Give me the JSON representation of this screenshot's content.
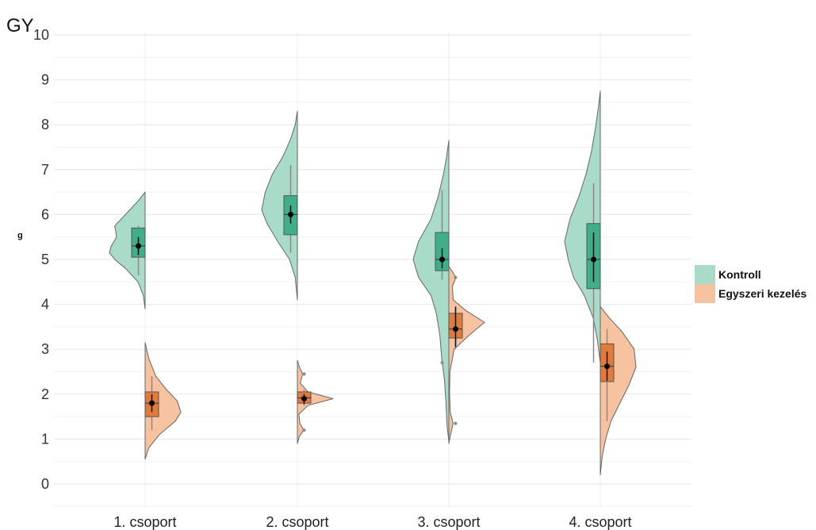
{
  "chart_data": {
    "type": "split-violin",
    "title": "GY",
    "xlabel": "",
    "ylabel": "g",
    "ylim": [
      0,
      10
    ],
    "yticks": [
      "0",
      "1",
      "2",
      "3",
      "4",
      "5",
      "6",
      "7",
      "8",
      "9",
      "10"
    ],
    "categories": [
      "1. csoport",
      "2. csoport",
      "3. csoport",
      "4. csoport"
    ],
    "grid": true,
    "legend_position": "right",
    "series": [
      {
        "name": "Kontroll",
        "side": "left",
        "fill": "#a8dcc8",
        "box_color": "#3fae8a",
        "groups": [
          {
            "min": 3.9,
            "max": 6.5,
            "q1": 5.05,
            "median": 5.3,
            "q3": 5.7,
            "mean": 5.3,
            "mean_lo": 5.1,
            "mean_hi": 5.5,
            "whisker_lo": 4.65,
            "whisker_hi": 5.75,
            "density": [
              [
                3.9,
                0
              ],
              [
                4.2,
                0.05
              ],
              [
                4.5,
                0.2
              ],
              [
                4.8,
                0.55
              ],
              [
                5.0,
                0.85
              ],
              [
                5.15,
                1.0
              ],
              [
                5.3,
                0.95
              ],
              [
                5.5,
                0.8
              ],
              [
                5.75,
                0.85
              ],
              [
                6.0,
                0.55
              ],
              [
                6.3,
                0.2
              ],
              [
                6.5,
                0
              ]
            ]
          },
          {
            "min": 4.1,
            "max": 8.3,
            "q1": 5.55,
            "median": 6.0,
            "q3": 6.42,
            "mean": 6.0,
            "mean_lo": 5.8,
            "mean_hi": 6.2,
            "whisker_lo": 5.15,
            "whisker_hi": 7.1,
            "density": [
              [
                4.1,
                0
              ],
              [
                4.6,
                0.06
              ],
              [
                5.0,
                0.22
              ],
              [
                5.4,
                0.55
              ],
              [
                5.8,
                0.85
              ],
              [
                6.1,
                1.0
              ],
              [
                6.5,
                0.9
              ],
              [
                6.9,
                0.7
              ],
              [
                7.3,
                0.4
              ],
              [
                7.7,
                0.18
              ],
              [
                8.0,
                0.06
              ],
              [
                8.3,
                0
              ]
            ]
          },
          {
            "min": 0.95,
            "max": 7.65,
            "q1": 4.75,
            "median": 5.0,
            "q3": 5.6,
            "mean": 5.0,
            "mean_lo": 4.8,
            "mean_hi": 5.25,
            "whisker_lo": 4.55,
            "whisker_hi": 6.55,
            "outliers": [
              2.7
            ],
            "density": [
              [
                0.95,
                0
              ],
              [
                1.3,
                0.05
              ],
              [
                1.8,
                0.08
              ],
              [
                2.3,
                0.12
              ],
              [
                2.8,
                0.2
              ],
              [
                3.3,
                0.25
              ],
              [
                3.8,
                0.35
              ],
              [
                4.2,
                0.5
              ],
              [
                4.6,
                0.85
              ],
              [
                5.0,
                1.0
              ],
              [
                5.4,
                0.85
              ],
              [
                5.9,
                0.5
              ],
              [
                6.4,
                0.3
              ],
              [
                6.9,
                0.15
              ],
              [
                7.3,
                0.06
              ],
              [
                7.65,
                0
              ]
            ]
          },
          {
            "min": 2.7,
            "max": 8.75,
            "q1": 4.35,
            "median": 5.0,
            "q3": 5.8,
            "mean": 5.0,
            "mean_lo": 4.5,
            "mean_hi": 5.6,
            "whisker_lo": 2.7,
            "whisker_hi": 6.7,
            "density": [
              [
                2.7,
                0
              ],
              [
                3.2,
                0.08
              ],
              [
                3.7,
                0.2
              ],
              [
                4.2,
                0.45
              ],
              [
                4.6,
                0.75
              ],
              [
                5.0,
                0.9
              ],
              [
                5.4,
                1.0
              ],
              [
                5.9,
                0.85
              ],
              [
                6.4,
                0.6
              ],
              [
                6.9,
                0.4
              ],
              [
                7.4,
                0.25
              ],
              [
                7.9,
                0.14
              ],
              [
                8.4,
                0.05
              ],
              [
                8.75,
                0
              ]
            ]
          }
        ]
      },
      {
        "name": "Egyszeri kezelés",
        "side": "right",
        "fill": "#f6c2a0",
        "box_color": "#e07b3c",
        "groups": [
          {
            "min": 0.55,
            "max": 3.15,
            "q1": 1.5,
            "median": 1.8,
            "q3": 2.05,
            "mean": 1.8,
            "mean_lo": 1.6,
            "mean_hi": 2.0,
            "whisker_lo": 1.2,
            "whisker_hi": 2.4,
            "density": [
              [
                0.55,
                0
              ],
              [
                0.8,
                0.1
              ],
              [
                1.1,
                0.4
              ],
              [
                1.4,
                0.85
              ],
              [
                1.6,
                1.0
              ],
              [
                1.85,
                0.9
              ],
              [
                2.1,
                0.6
              ],
              [
                2.4,
                0.3
              ],
              [
                2.8,
                0.1
              ],
              [
                3.15,
                0
              ]
            ]
          },
          {
            "min": 0.9,
            "max": 2.75,
            "q1": 1.8,
            "median": 1.92,
            "q3": 2.05,
            "mean": 1.9,
            "mean_lo": 1.78,
            "mean_hi": 2.0,
            "whisker_lo": 1.75,
            "whisker_hi": 2.1,
            "outliers": [
              1.2,
              2.45
            ],
            "density": [
              [
                0.9,
                0
              ],
              [
                1.05,
                0.05
              ],
              [
                1.2,
                0.18
              ],
              [
                1.35,
                0.07
              ],
              [
                1.55,
                0.04
              ],
              [
                1.75,
                0.3
              ],
              [
                1.9,
                1.0
              ],
              [
                2.05,
                0.3
              ],
              [
                2.25,
                0.08
              ],
              [
                2.45,
                0.15
              ],
              [
                2.6,
                0.06
              ],
              [
                2.75,
                0
              ]
            ]
          },
          {
            "min": 0.9,
            "max": 4.85,
            "q1": 3.25,
            "median": 3.45,
            "q3": 3.8,
            "mean": 3.45,
            "mean_lo": 3.05,
            "mean_hi": 3.95,
            "whisker_lo": 3.0,
            "whisker_hi": 3.95,
            "outliers": [
              1.35,
              4.6
            ],
            "density": [
              [
                0.9,
                0
              ],
              [
                1.1,
                0.05
              ],
              [
                1.35,
                0.12
              ],
              [
                1.6,
                0.04
              ],
              [
                2.0,
                0.02
              ],
              [
                2.5,
                0.03
              ],
              [
                3.0,
                0.15
              ],
              [
                3.3,
                0.55
              ],
              [
                3.6,
                1.0
              ],
              [
                3.85,
                0.5
              ],
              [
                4.1,
                0.12
              ],
              [
                4.4,
                0.1
              ],
              [
                4.6,
                0.2
              ],
              [
                4.85,
                0
              ]
            ]
          },
          {
            "min": 0.2,
            "max": 3.95,
            "q1": 2.28,
            "median": 2.62,
            "q3": 3.12,
            "mean": 2.62,
            "mean_lo": 2.3,
            "mean_hi": 2.95,
            "whisker_lo": 1.4,
            "whisker_hi": 3.45,
            "density": [
              [
                0.2,
                0
              ],
              [
                0.6,
                0.05
              ],
              [
                1.0,
                0.15
              ],
              [
                1.4,
                0.3
              ],
              [
                1.8,
                0.55
              ],
              [
                2.2,
                0.8
              ],
              [
                2.6,
                1.0
              ],
              [
                3.0,
                0.95
              ],
              [
                3.4,
                0.6
              ],
              [
                3.7,
                0.25
              ],
              [
                3.95,
                0
              ]
            ]
          }
        ]
      }
    ]
  },
  "legend": {
    "items": [
      {
        "label": "Kontroll",
        "color": "#a8dcc8"
      },
      {
        "label": "Egyszeri kezelés",
        "color": "#f6c2a0"
      }
    ]
  }
}
